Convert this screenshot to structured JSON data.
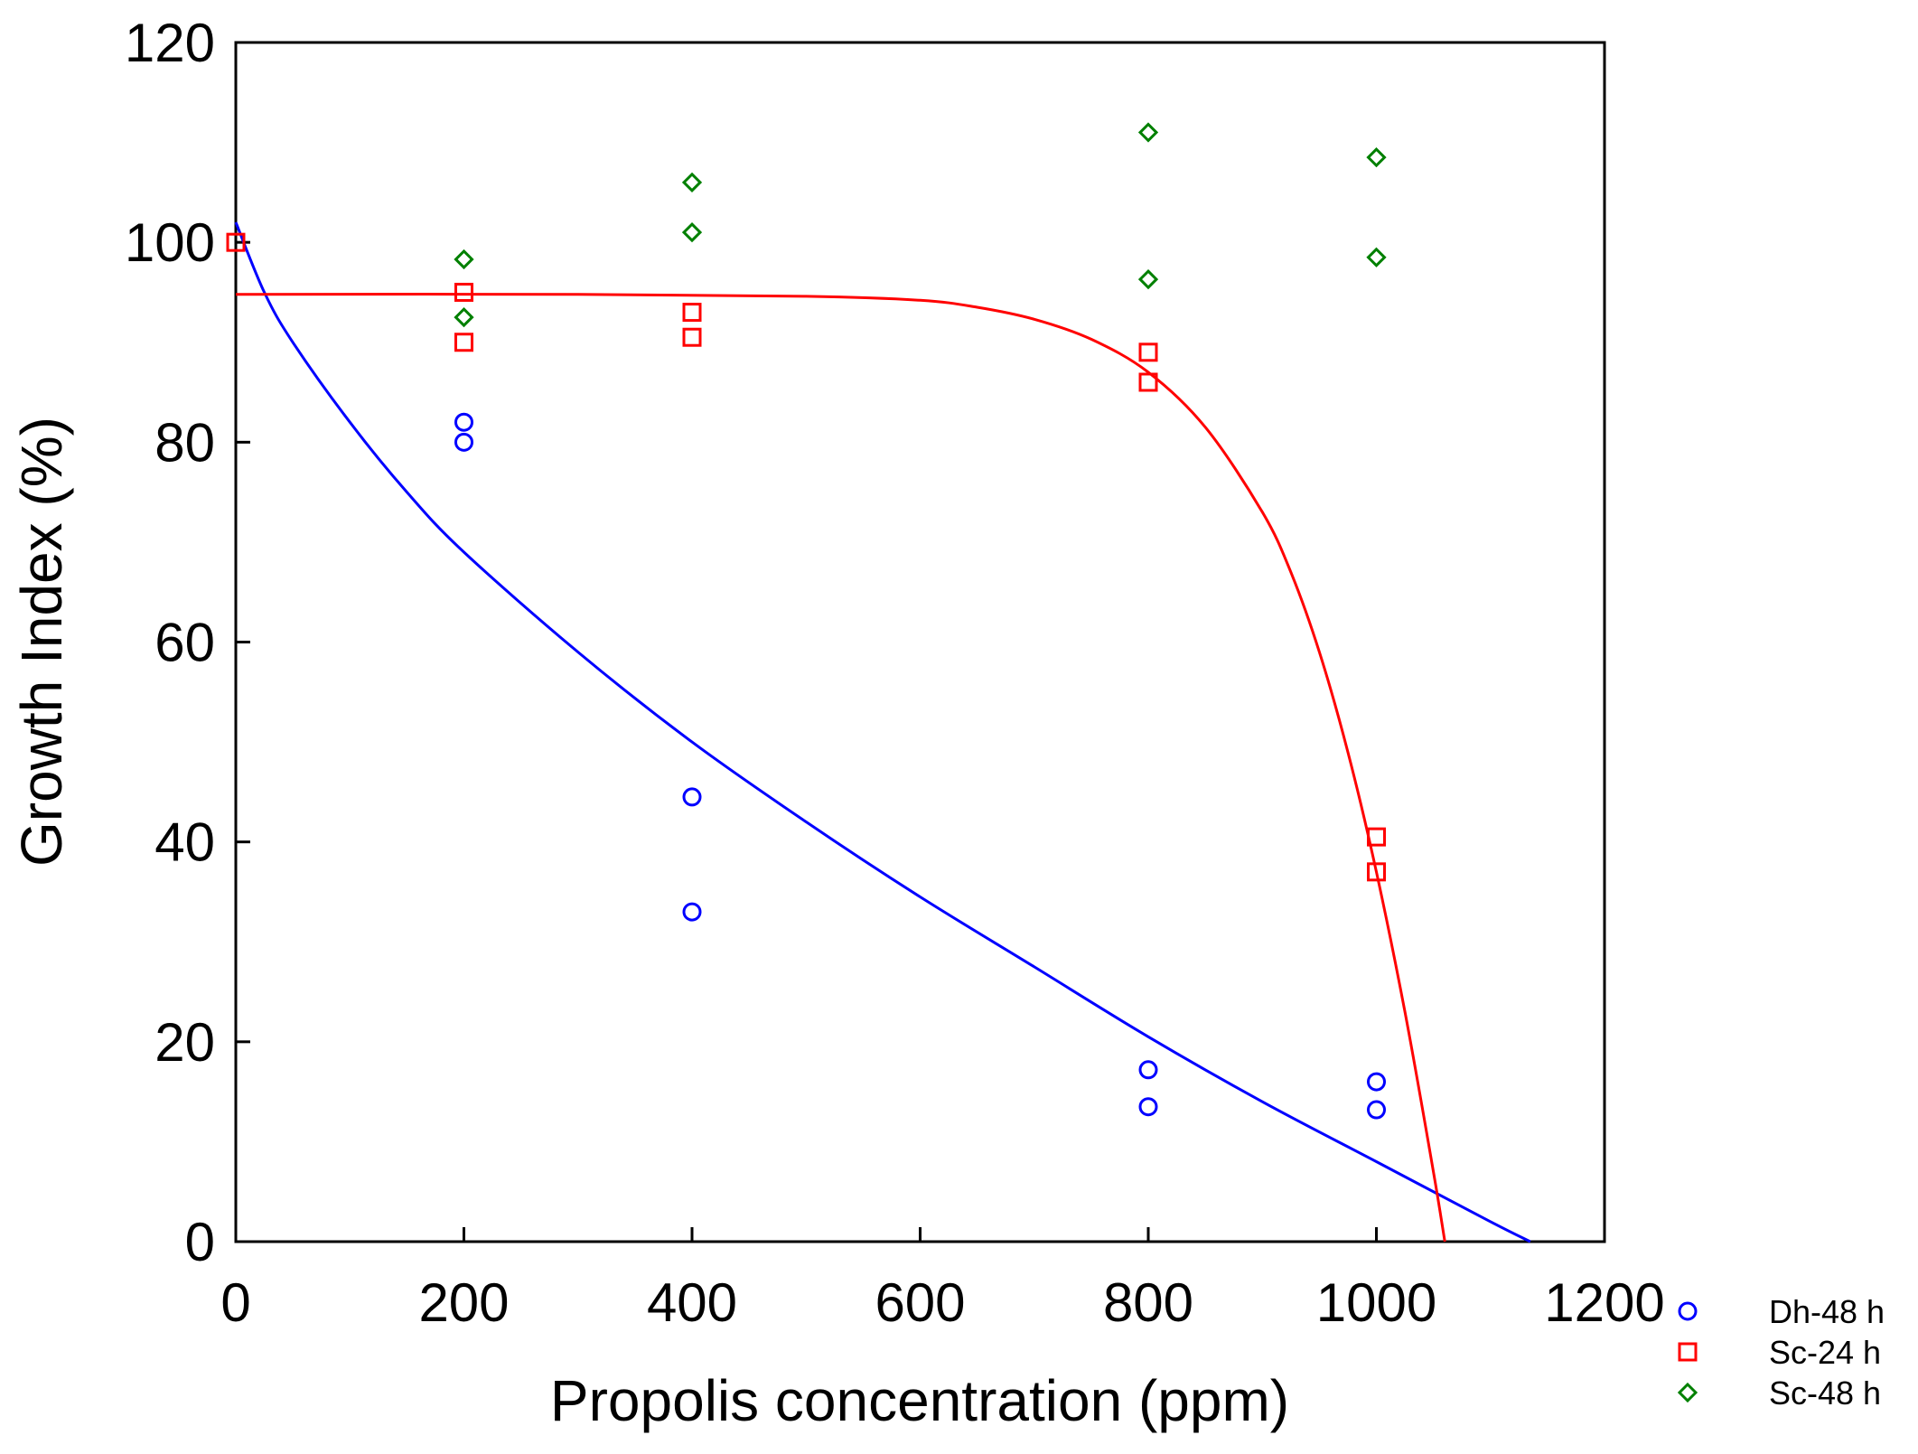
{
  "chart_data": {
    "type": "scatter",
    "title": "",
    "xlabel": "Propolis concentration (ppm)",
    "ylabel": "Growth Index (%)",
    "xlim": [
      0,
      1200
    ],
    "ylim": [
      0,
      120
    ],
    "xticks": [
      0,
      200,
      400,
      600,
      800,
      1000,
      1200
    ],
    "yticks": [
      0,
      20,
      40,
      60,
      80,
      100,
      120
    ],
    "grid": false,
    "legend_position": "right-bottom-outside",
    "series": [
      {
        "name": "Dh-48 h",
        "marker": "circle",
        "color": "#0000ff",
        "points": [
          [
            200,
            82
          ],
          [
            200,
            80
          ],
          [
            400,
            44.5
          ],
          [
            400,
            33
          ],
          [
            800,
            17.2
          ],
          [
            800,
            13.5
          ],
          [
            1000,
            16
          ],
          [
            1000,
            13.2
          ]
        ],
        "fit": {
          "x": [
            0,
            25,
            50,
            100,
            150,
            200,
            300,
            400,
            500,
            600,
            700,
            800,
            900,
            1000,
            1100,
            1135
          ],
          "y": [
            102,
            95,
            90,
            82,
            75,
            69,
            59,
            50,
            42,
            34.5,
            27.5,
            20.5,
            14,
            8,
            2,
            0
          ]
        }
      },
      {
        "name": "Sc-24 h",
        "marker": "square",
        "color": "#ff0000",
        "points": [
          [
            0,
            100
          ],
          [
            200,
            95
          ],
          [
            200,
            90
          ],
          [
            400,
            93
          ],
          [
            400,
            90.5
          ],
          [
            800,
            89
          ],
          [
            800,
            86
          ],
          [
            1000,
            40.5
          ],
          [
            1000,
            37
          ]
        ],
        "fit": {
          "x": [
            0,
            300,
            500,
            600,
            650,
            700,
            750,
            800,
            850,
            900,
            925,
            950,
            975,
            1000,
            1025,
            1050,
            1060
          ],
          "y": [
            94.8,
            94.8,
            94.6,
            94.2,
            93.5,
            92.3,
            90.3,
            87,
            81.5,
            73,
            67,
            59,
            49,
            37,
            23,
            7,
            0
          ]
        }
      },
      {
        "name": "Sc-48 h",
        "marker": "diamond",
        "color": "#008000",
        "points": [
          [
            200,
            98.3
          ],
          [
            200,
            92.5
          ],
          [
            400,
            106
          ],
          [
            400,
            101
          ],
          [
            800,
            111
          ],
          [
            800,
            96.3
          ],
          [
            1000,
            108.5
          ],
          [
            1000,
            98.5
          ]
        ]
      }
    ]
  }
}
